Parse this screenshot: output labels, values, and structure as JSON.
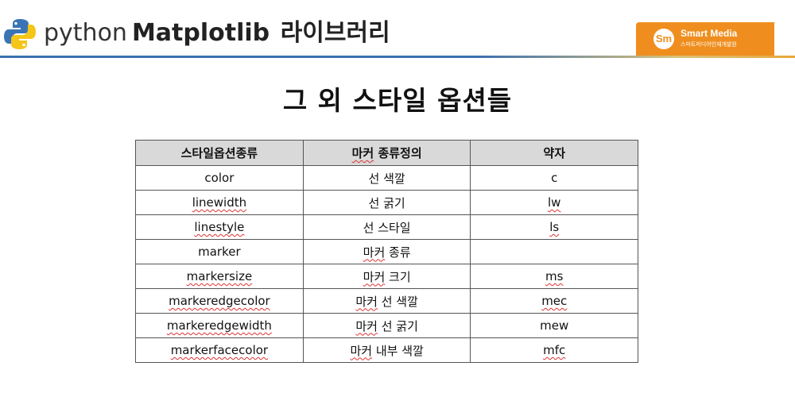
{
  "header": {
    "logo_icon": "python-logo-icon",
    "prefix": "python",
    "library": "Matplotlib",
    "suffix": "라이브러리"
  },
  "brand": {
    "icon": "smart-media-logo-icon",
    "mark": "Sm",
    "name": "Smart Media",
    "tagline": "스마트미디어인재개발원",
    "color": "#ef8e1e"
  },
  "title": "그 외 스타일 옵션들",
  "table": {
    "headers": [
      "스타일옵션종류",
      "마커 종류정의",
      "약자"
    ],
    "rows": [
      [
        "color",
        "선 색깔",
        "c"
      ],
      [
        "linewidth",
        "선 굵기",
        "lw"
      ],
      [
        "linestyle",
        "선 스타일",
        "ls"
      ],
      [
        "marker",
        "마커 종류",
        ""
      ],
      [
        "markersize",
        "마커 크기",
        "ms"
      ],
      [
        "markeredgecolor",
        "마커 선 색깔",
        "mec"
      ],
      [
        "markeredgewidth",
        "마커 선 굵기",
        "mew"
      ],
      [
        "markerfacecolor",
        "마커 내부 색깔",
        "mfc"
      ]
    ]
  }
}
